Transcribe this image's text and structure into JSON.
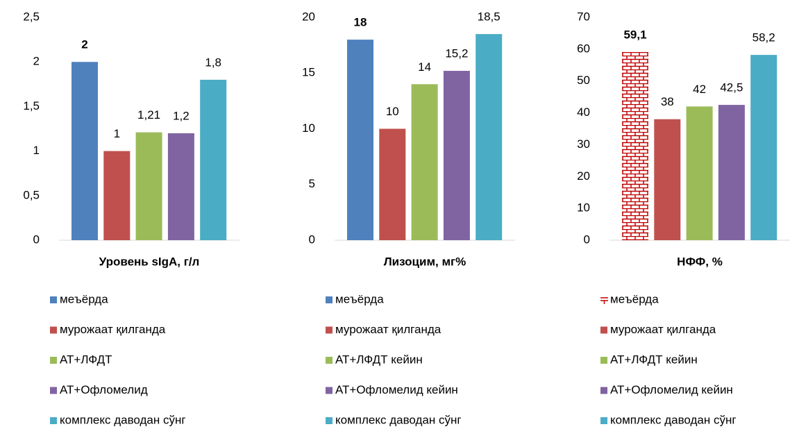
{
  "chart_data": [
    {
      "type": "bar",
      "title": "Уровень sIgA, г/л",
      "ylim": [
        0,
        2.5
      ],
      "yticks": [
        0,
        {
          "value": 0.5,
          "label": "0,5"
        },
        1,
        {
          "value": 1.5,
          "label": "1,5"
        },
        2,
        {
          "value": 2.5,
          "label": "2,5"
        }
      ],
      "series": [
        {
          "name": "меъёрда",
          "color": "#4f81bd",
          "values": [
            2
          ]
        },
        {
          "name": "мурожаат қилганда",
          "color": "#c0504d",
          "values": [
            1
          ]
        },
        {
          "name": "АТ+ЛФДТ",
          "color": "#9bbb59",
          "values": [
            1.21
          ],
          "value_labels": [
            "1,21"
          ]
        },
        {
          "name": "АТ+Офломелид",
          "color": "#8064a2",
          "values": [
            1.2
          ],
          "value_labels": [
            "1,2"
          ]
        },
        {
          "name": "комплекс даводан сўнг",
          "color": "#4bacc6",
          "values": [
            1.8
          ],
          "value_labels": [
            "1,8"
          ]
        }
      ]
    },
    {
      "type": "bar",
      "title": "Лизоцим, мг%",
      "ylim": [
        0,
        20
      ],
      "yticks": [
        0,
        5,
        10,
        15,
        20
      ],
      "series": [
        {
          "name": "меъёрда",
          "color": "#4f81bd",
          "values": [
            18
          ]
        },
        {
          "name": "мурожаат қилганда",
          "color": "#c0504d",
          "values": [
            10
          ]
        },
        {
          "name": "АТ+ЛФДТ кейин",
          "color": "#9bbb59",
          "values": [
            14
          ]
        },
        {
          "name": "АТ+Офломелид кейин",
          "color": "#8064a2",
          "values": [
            15.2
          ],
          "value_labels": [
            "15,2"
          ]
        },
        {
          "name": "комплекс даводан сўнг",
          "color": "#4bacc6",
          "values": [
            18.5
          ],
          "value_labels": [
            "18,5"
          ]
        }
      ]
    },
    {
      "type": "bar",
      "title": "НФФ, %",
      "ylim": [
        0,
        70
      ],
      "yticks": [
        0,
        10,
        20,
        30,
        40,
        50,
        60,
        70
      ],
      "series": [
        {
          "name": "меъёрда",
          "color": "#c00000",
          "pattern": "brick",
          "values": [
            59.1
          ],
          "value_labels": [
            "59,1"
          ]
        },
        {
          "name": "мурожаат қилганда",
          "color": "#c0504d",
          "values": [
            38
          ]
        },
        {
          "name": "АТ+ЛФДТ кейин",
          "color": "#9bbb59",
          "values": [
            42
          ]
        },
        {
          "name": "АТ+Офломелид кейин",
          "color": "#8064a2",
          "values": [
            42.5
          ],
          "value_labels": [
            "42,5"
          ]
        },
        {
          "name": "комплекс даводан сўнг",
          "color": "#4bacc6",
          "values": [
            58.2
          ],
          "value_labels": [
            "58,2"
          ]
        }
      ]
    }
  ]
}
